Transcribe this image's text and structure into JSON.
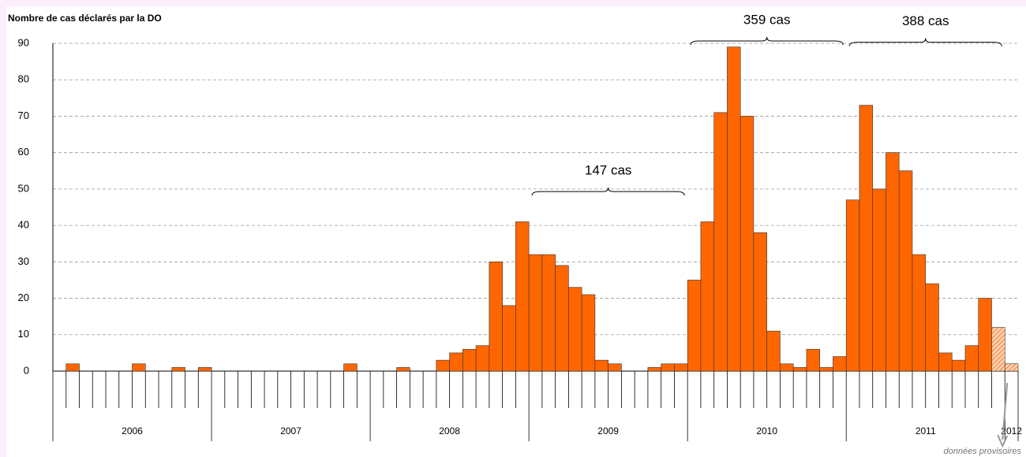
{
  "chart_data": {
    "type": "bar",
    "y_label": "Nombre de cas déclarés par la DO",
    "years": [
      "2006",
      "2007",
      "2008",
      "2009",
      "2010",
      "2011",
      "2012"
    ],
    "brace_labels": [
      null,
      null,
      null,
      "147 cas",
      "359 cas",
      "388 cas",
      null
    ],
    "ylim": [
      0,
      90
    ],
    "yticks": [
      0,
      10,
      20,
      30,
      40,
      50,
      60,
      70,
      80,
      90
    ],
    "grid": true,
    "series": [
      {
        "color": "#ff6600",
        "values": [
          0,
          2,
          0,
          0,
          0,
          0,
          2,
          0,
          0,
          1,
          0,
          1,
          0,
          0,
          0,
          0,
          0,
          0,
          0,
          0,
          0,
          0,
          2,
          0,
          0,
          0,
          1,
          0,
          0,
          3,
          5,
          6,
          7,
          30,
          18,
          41,
          32,
          32,
          29,
          23,
          21,
          3,
          2,
          0,
          0,
          1,
          2,
          2,
          25,
          41,
          71,
          89,
          70,
          38,
          11,
          2,
          1,
          6,
          1,
          4,
          47,
          73,
          50,
          60,
          55,
          32,
          24,
          5,
          3,
          7,
          20,
          null,
          null
        ]
      },
      {
        "name": "données provisoires",
        "color": "#ff6600",
        "pattern": "hatch",
        "values": [
          null,
          null,
          null,
          null,
          null,
          null,
          null,
          null,
          null,
          null,
          null,
          null,
          null,
          null,
          null,
          null,
          null,
          null,
          null,
          null,
          null,
          null,
          null,
          null,
          null,
          null,
          null,
          null,
          null,
          null,
          null,
          null,
          null,
          null,
          null,
          null,
          null,
          null,
          null,
          null,
          null,
          null,
          null,
          null,
          null,
          null,
          null,
          null,
          null,
          null,
          null,
          null,
          null,
          null,
          null,
          null,
          null,
          null,
          null,
          null,
          null,
          null,
          null,
          null,
          null,
          null,
          null,
          null,
          null,
          null,
          null,
          12,
          2
        ]
      }
    ]
  }
}
